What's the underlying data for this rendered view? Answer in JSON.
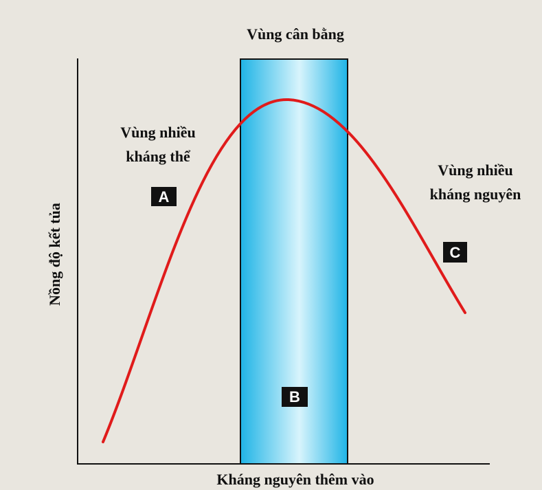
{
  "title": "Vùng cân bằng",
  "regions": [
    {
      "lines": [
        "Vùng nhiều",
        "kháng thể"
      ],
      "marker": "A"
    },
    {
      "marker": "B"
    },
    {
      "lines": [
        "Vùng nhiều",
        "kháng nguyên"
      ],
      "marker": "C"
    }
  ],
  "y_axis_label": "Nồng độ kết tủa",
  "x_axis_label": "Kháng nguyên thêm vào"
}
